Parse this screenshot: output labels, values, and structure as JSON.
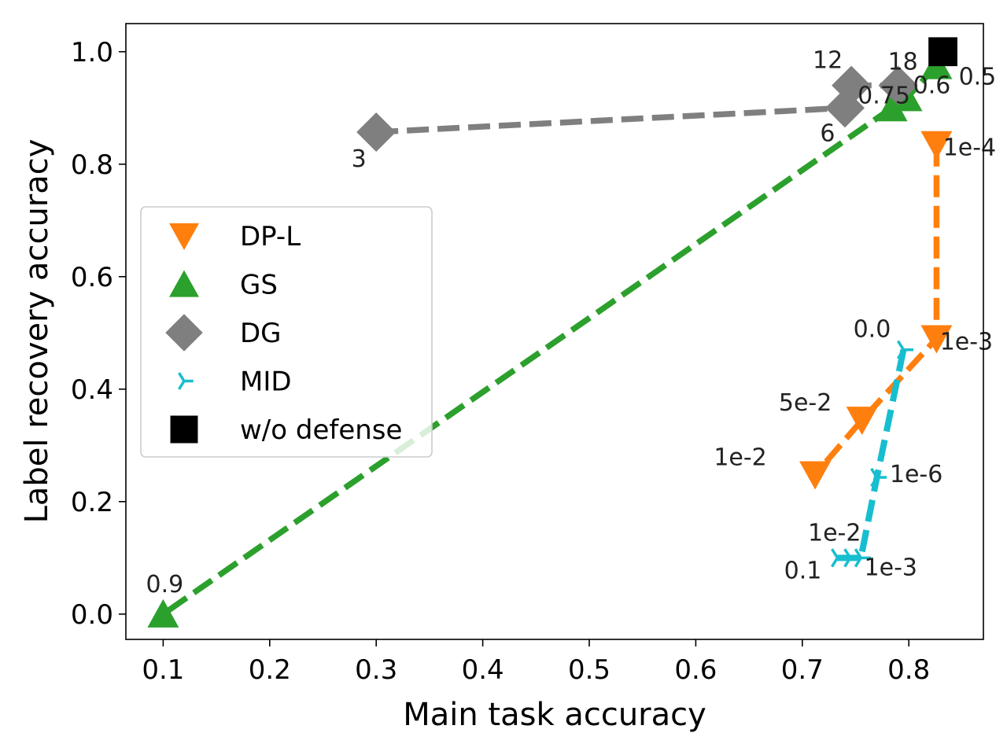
{
  "chart_data": {
    "type": "line",
    "title": "",
    "xlabel": "Main task accuracy",
    "ylabel": "Label recovery accuracy",
    "xlim": [
      0.065,
      0.87
    ],
    "ylim": [
      -0.045,
      1.05
    ],
    "xticks": [
      "0.1",
      "0.2",
      "0.3",
      "0.4",
      "0.5",
      "0.6",
      "0.7",
      "0.8"
    ],
    "yticks": [
      "0.0",
      "0.2",
      "0.4",
      "0.6",
      "0.8",
      "1.0"
    ],
    "legend_position": "center-left",
    "series": [
      {
        "name": "DP-L",
        "color": "#ff7f0e",
        "marker": "triangle-down",
        "points": [
          {
            "x": 0.826,
            "y": 0.835,
            "label": "1e-4"
          },
          {
            "x": 0.826,
            "y": 0.49,
            "label": "1e-3"
          },
          {
            "x": 0.756,
            "y": 0.345,
            "label": "5e-2"
          },
          {
            "x": 0.712,
            "y": 0.248,
            "label": "1e-2"
          }
        ]
      },
      {
        "name": "GS",
        "color": "#2ca02c",
        "marker": "triangle-up",
        "points": [
          {
            "x": 0.826,
            "y": 0.975,
            "label": "0.5"
          },
          {
            "x": 0.798,
            "y": 0.918,
            "label": "0.6"
          },
          {
            "x": 0.784,
            "y": 0.9,
            "label": "0.75"
          },
          {
            "x": 0.1,
            "y": 0.0,
            "label": "0.9"
          }
        ]
      },
      {
        "name": "DG",
        "color": "#7f7f7f",
        "marker": "diamond",
        "points": [
          {
            "x": 0.3,
            "y": 0.857,
            "label": "3"
          },
          {
            "x": 0.74,
            "y": 0.9,
            "label": "6"
          },
          {
            "x": 0.746,
            "y": 0.94,
            "label": "12"
          },
          {
            "x": 0.79,
            "y": 0.94,
            "label": "18"
          }
        ]
      },
      {
        "name": "MID",
        "color": "#17becf",
        "marker": "tri-right",
        "points": [
          {
            "x": 0.795,
            "y": 0.47,
            "label": "0.0"
          },
          {
            "x": 0.77,
            "y": 0.243,
            "label": "1e-6"
          },
          {
            "x": 0.755,
            "y": 0.1,
            "label": "1e-3"
          },
          {
            "x": 0.745,
            "y": 0.1,
            "label": "1e-2"
          },
          {
            "x": 0.733,
            "y": 0.1,
            "label": "0.1"
          }
        ]
      },
      {
        "name": "w/o defense",
        "color": "#000000",
        "marker": "square",
        "points": [
          {
            "x": 0.832,
            "y": 1.0,
            "label": ""
          }
        ]
      }
    ]
  }
}
